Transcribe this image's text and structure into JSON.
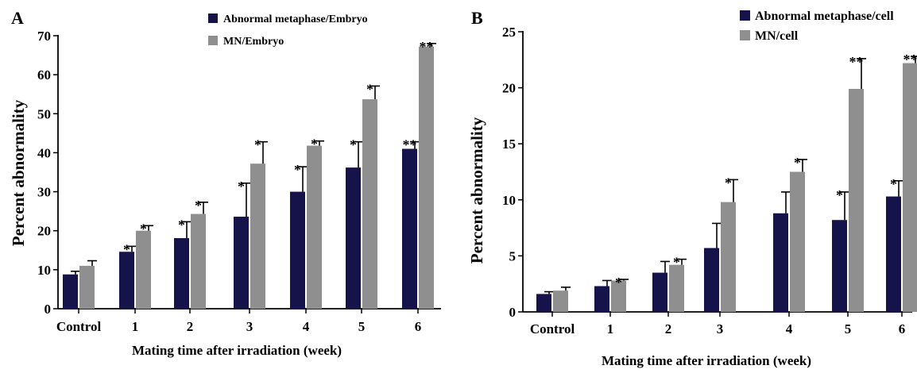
{
  "chart_data": [
    {
      "panel": "A",
      "type": "bar",
      "categories": [
        "Control",
        "1",
        "2",
        "3",
        "4",
        "5",
        "6"
      ],
      "xlabel": "Mating time after irradiation (week)",
      "ylabel": "Percent abnormality",
      "ylim": [
        0,
        70
      ],
      "yticks": [
        "0",
        "10",
        "20",
        "30",
        "40",
        "50",
        "60",
        "70"
      ],
      "legend_position": "top-center",
      "series": [
        {
          "name": "Abnormal metaphase/Embryo",
          "color": "#15134a",
          "values": [
            8.8,
            14.6,
            18.1,
            23.6,
            30.0,
            36.2,
            41.0
          ],
          "errors": [
            0.8,
            1.4,
            4.2,
            8.6,
            6.4,
            6.6,
            1.8
          ],
          "marks": [
            "",
            "*",
            "*",
            "*",
            "*",
            "*",
            "**"
          ]
        },
        {
          "name": "MN/Embryo",
          "color": "#8f8f8f",
          "values": [
            11.0,
            20.0,
            24.3,
            37.2,
            41.8,
            53.7,
            67.2
          ],
          "errors": [
            1.3,
            1.3,
            3.0,
            5.6,
            1.2,
            3.4,
            0.8
          ],
          "marks": [
            "",
            "*",
            "*",
            "*",
            "*",
            "*",
            "**"
          ]
        }
      ]
    },
    {
      "panel": "B",
      "type": "bar",
      "categories": [
        "Control",
        "1",
        "2",
        "3",
        "4",
        "5",
        "6"
      ],
      "xlabel": "Mating time after irradiation (week)",
      "ylabel": "Percent abnormality",
      "ylim": [
        0,
        25
      ],
      "yticks": [
        "0",
        "5",
        "10",
        "15",
        "20",
        "25"
      ],
      "legend_position": "top-right",
      "series": [
        {
          "name": "Abnormal metaphase/cell",
          "color": "#15134a",
          "values": [
            1.6,
            2.3,
            3.5,
            5.7,
            8.8,
            8.2,
            10.3
          ],
          "errors": [
            0.2,
            0.5,
            1.0,
            2.2,
            1.9,
            2.5,
            1.4
          ],
          "marks": [
            "",
            "",
            "",
            "",
            "",
            "*",
            "*"
          ]
        },
        {
          "name": "MN/cell",
          "color": "#8f8f8f",
          "values": [
            1.9,
            2.8,
            4.2,
            9.8,
            12.5,
            19.9,
            22.2
          ],
          "errors": [
            0.3,
            0.1,
            0.5,
            2.0,
            1.1,
            2.7,
            0.6
          ],
          "marks": [
            "",
            "*",
            "*",
            "*",
            "*",
            "**",
            "**"
          ]
        }
      ]
    }
  ]
}
